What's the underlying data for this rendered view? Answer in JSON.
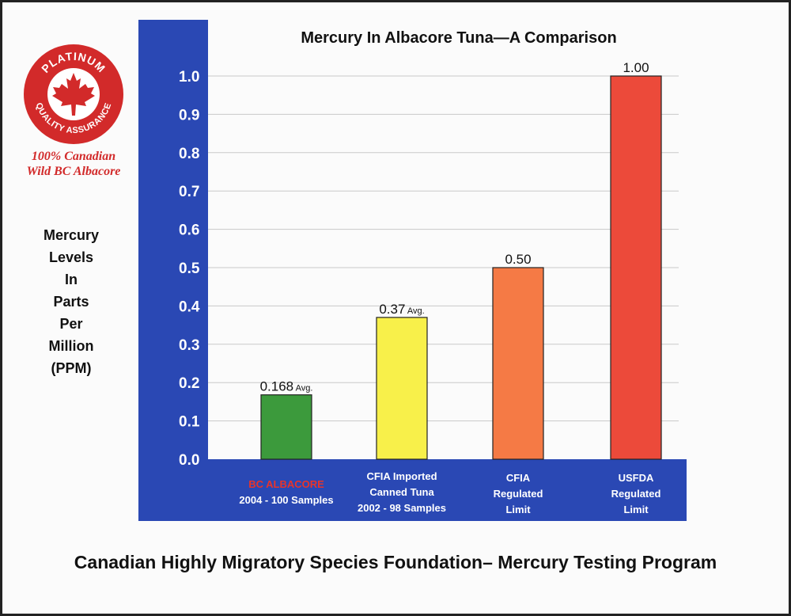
{
  "logo": {
    "ring_top": "PLATINUM",
    "ring_bottom": "QUALITY ASSURANCE",
    "caption_line1": "100% Canadian",
    "caption_line2": "Wild BC Albacore",
    "color": "#d22a2a"
  },
  "y_axis_label_lines": [
    "Mercury",
    "Levels",
    "In",
    "Parts",
    "Per",
    "Million",
    "(PPM)"
  ],
  "footer": "Canadian Highly Migratory Species Foundation– Mercury Testing Program",
  "colors": {
    "panel_blue": "#2a48b4",
    "bar_green": "#3c9a3c",
    "bar_yellow": "#f8f04a",
    "bar_orange": "#f57a45",
    "bar_red": "#ec4a3a",
    "accent_red": "#e8342a"
  },
  "chart_data": {
    "type": "bar",
    "title": "Mercury In Albacore Tuna—A Comparison",
    "ylabel": "Mercury Levels In Parts Per Million (PPM)",
    "ylim": [
      0,
      1.0
    ],
    "y_ticks": [
      "0.0",
      "0.1",
      "0.2",
      "0.3",
      "0.4",
      "0.5",
      "0.6",
      "0.7",
      "0.8",
      "0.9",
      "1.0"
    ],
    "grid": true,
    "categories": [
      {
        "line1": "BC  ALBACORE",
        "line2": "2004 - 100 Samples",
        "line1_red": true
      },
      {
        "line1": "CFIA Imported",
        "line2": "Canned Tuna",
        "line3": "2002 - 98 Samples"
      },
      {
        "line1": "CFIA",
        "line2": "Regulated",
        "line3": "Limit"
      },
      {
        "line1": "USFDA",
        "line2": "Regulated",
        "line3": "Limit"
      }
    ],
    "values": [
      0.168,
      0.37,
      0.5,
      1.0
    ],
    "data_labels": [
      "0.168",
      "0.37",
      "0.50",
      "1.00"
    ],
    "data_label_suffix": [
      "Avg.",
      "Avg.",
      "",
      ""
    ],
    "bar_colors": [
      "#3c9a3c",
      "#f8f04a",
      "#f57a45",
      "#ec4a3a"
    ]
  }
}
